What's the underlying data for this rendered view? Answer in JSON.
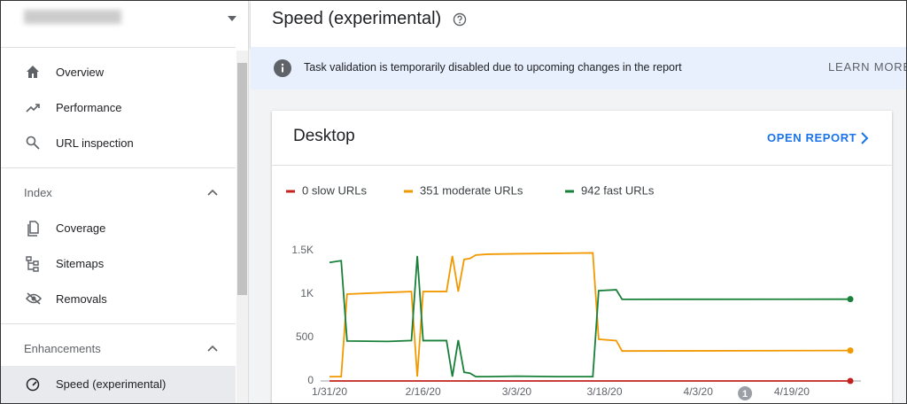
{
  "sidebar": {
    "nav": [
      "Overview",
      "Performance",
      "URL inspection"
    ],
    "sections": [
      {
        "title": "Index",
        "items": [
          "Coverage",
          "Sitemaps",
          "Removals"
        ]
      },
      {
        "title": "Enhancements",
        "items": [
          "Speed (experimental)"
        ]
      }
    ]
  },
  "header": {
    "title": "Speed (experimental)"
  },
  "banner": {
    "text": "Task validation is temporarily disabled due to upcoming changes in the report",
    "action": "LEARN MORE"
  },
  "card": {
    "title": "Desktop",
    "action": "OPEN REPORT"
  },
  "chart_data": {
    "type": "line",
    "x": [
      "1/31/20",
      "2/2/20",
      "2/3/20",
      "2/10/20",
      "2/14/20",
      "2/15/20",
      "2/16/20",
      "2/20/20",
      "2/21/20",
      "2/22/20",
      "2/23/20",
      "2/24/20",
      "2/25/20",
      "2/27/20",
      "3/3/20",
      "3/10/20",
      "3/16/20",
      "3/17/20",
      "3/20/20",
      "3/21/20",
      "4/29/20"
    ],
    "series": [
      {
        "name": "0 slow URLs",
        "color": "#c5221f",
        "values": [
          0,
          0,
          0,
          0,
          0,
          0,
          0,
          0,
          0,
          0,
          0,
          0,
          0,
          0,
          0,
          0,
          0,
          0,
          0,
          0,
          0
        ]
      },
      {
        "name": "351 moderate URLs",
        "color": "#f29900",
        "values": [
          50,
          50,
          1000,
          1020,
          1030,
          50,
          1030,
          1030,
          1440,
          1030,
          1400,
          1410,
          1450,
          1460,
          1465,
          1470,
          1475,
          480,
          465,
          345,
          351
        ]
      },
      {
        "name": "942 fast URLs",
        "color": "#188038",
        "values": [
          1365,
          1385,
          460,
          455,
          465,
          1440,
          465,
          465,
          50,
          470,
          100,
          90,
          50,
          50,
          55,
          50,
          50,
          1040,
          1050,
          940,
          942
        ]
      }
    ],
    "ylim": [
      0,
      1500
    ],
    "yticks": [
      0,
      500,
      {
        "value": 1000,
        "label": "1K"
      },
      {
        "value": 1500,
        "label": "1.5K"
      }
    ],
    "xticks": [
      "1/31/20",
      "2/16/20",
      "3/3/20",
      "3/18/20",
      "4/3/20",
      "4/19/20"
    ],
    "annotations": [
      {
        "x": "4/11/20",
        "label": "1"
      }
    ],
    "grid": false
  }
}
